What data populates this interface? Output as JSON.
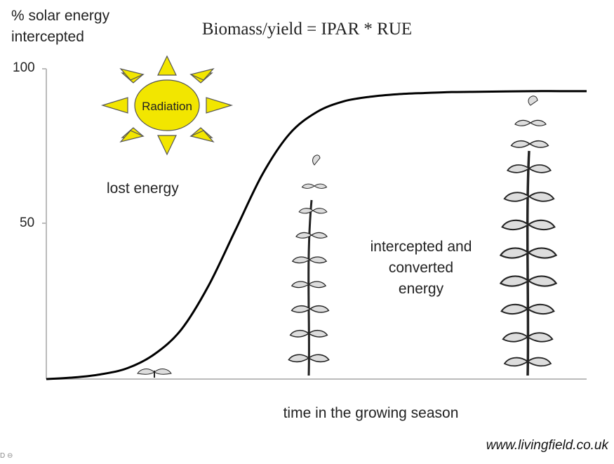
{
  "chart_data": {
    "type": "line",
    "title": "Biomass/yield = IPAR * RUE",
    "ylabel_lines": [
      "% solar energy",
      "intercepted"
    ],
    "xlabel": "time in the growing season",
    "yticks": [
      "100",
      "50"
    ],
    "ylim": [
      0,
      100
    ],
    "xlim": [
      0,
      100
    ],
    "series": [
      {
        "x": [
          0,
          5,
          10,
          15,
          20,
          25,
          30,
          35,
          40,
          45,
          50,
          55,
          60,
          65,
          70,
          75,
          80,
          85,
          90,
          95,
          100
        ],
        "values": [
          0,
          0.5,
          1.5,
          3.5,
          8,
          16,
          30,
          48,
          66,
          79,
          86,
          89.5,
          91,
          91.8,
          92.2,
          92.5,
          92.6,
          92.7,
          92.8,
          92.8,
          92.8
        ]
      }
    ],
    "annotations": {
      "sun_label": "Radiation",
      "lost_label": "lost energy",
      "intercepted_label": "intercepted and\nconverted\nenergy"
    },
    "credit": "www.livingfield.co.uk",
    "corner_text": "D ⊖"
  }
}
